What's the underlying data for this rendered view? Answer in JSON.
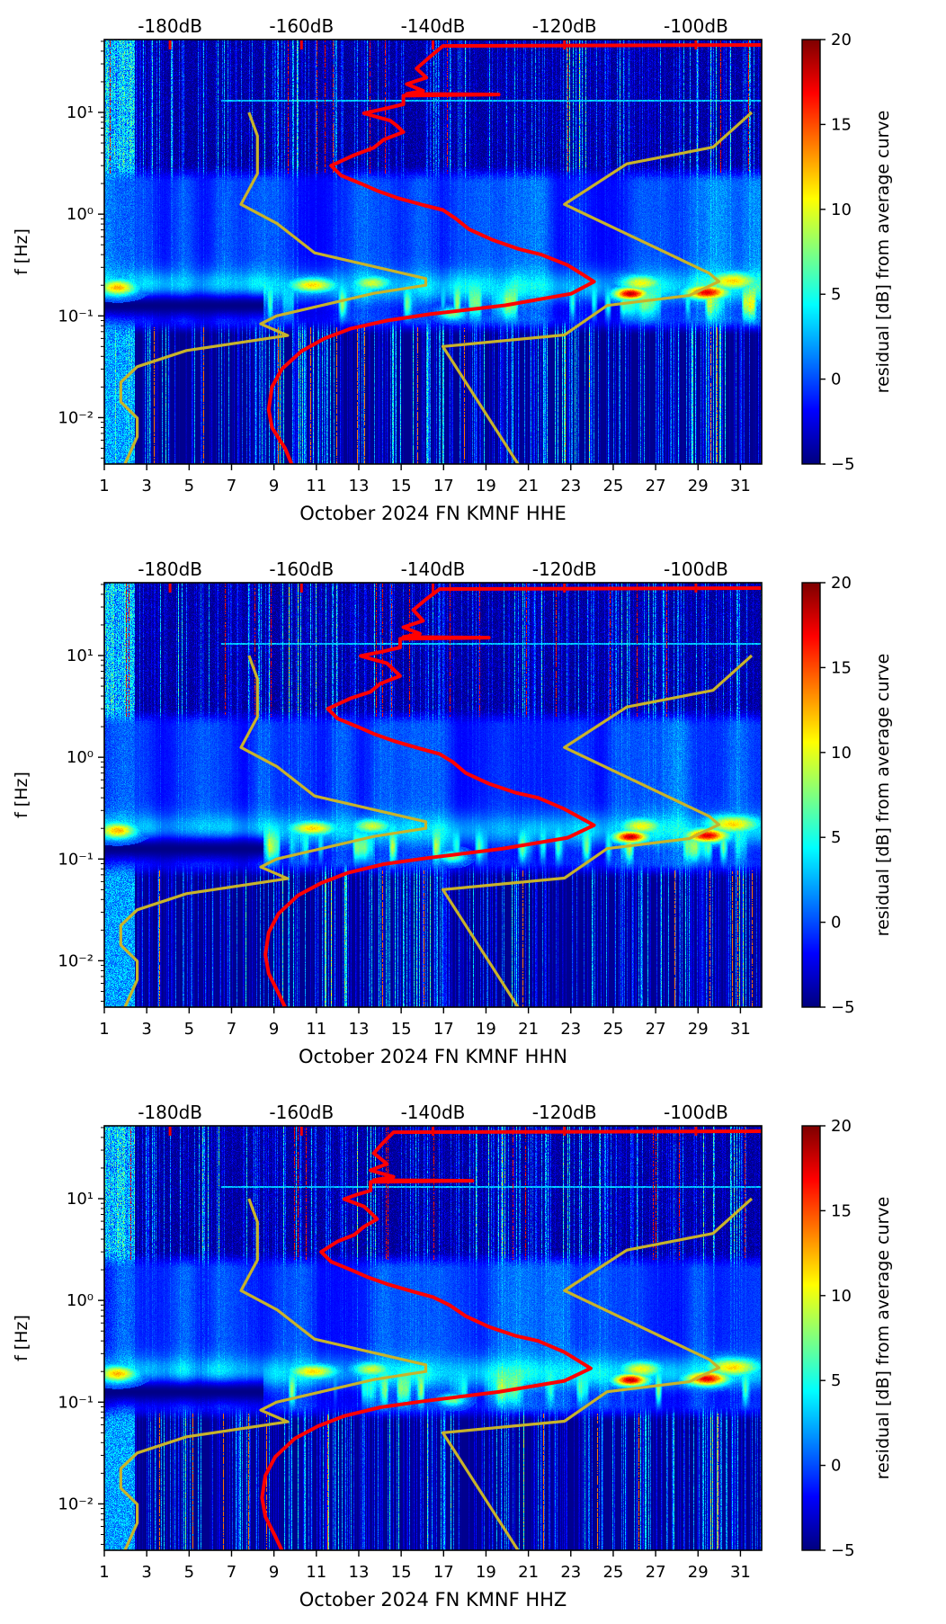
{
  "chart_data": {
    "type": "heatmap",
    "description": "Three daily spectrogram panels of seismic PSD residuals for station FN.KMNF (channels HHE, HHN, HHZ), October 2024, with average PSD curve (red, upper dB axis) and Peterson noise model curves (dark yellow).",
    "axes": {
      "x_label_days": [
        "1",
        "3",
        "5",
        "7",
        "9",
        "11",
        "13",
        "15",
        "17",
        "19",
        "21",
        "23",
        "25",
        "27",
        "29",
        "31"
      ],
      "x_day_values": [
        1,
        3,
        5,
        7,
        9,
        11,
        13,
        15,
        17,
        19,
        21,
        23,
        25,
        27,
        29,
        31
      ],
      "x_range_days": [
        1,
        32
      ],
      "y_label": "f [Hz]",
      "f_range": [
        0.0035,
        52
      ],
      "y_ticks": [
        {
          "f": 10,
          "label": "10¹"
        },
        {
          "f": 1,
          "label": "10⁰"
        },
        {
          "f": 0.1,
          "label": "10⁻¹"
        },
        {
          "f": 0.01,
          "label": "10⁻²"
        }
      ],
      "top_db_range": [
        -190,
        -90
      ],
      "top_ticks": [
        {
          "db": -180,
          "label": "-180dB"
        },
        {
          "db": -160,
          "label": "-160dB"
        },
        {
          "db": -140,
          "label": "-140dB"
        },
        {
          "db": -120,
          "label": "-120dB"
        },
        {
          "db": -100,
          "label": "-100dB"
        }
      ],
      "top_axis_color": "#ee0000"
    },
    "colorbar": {
      "label": "residual [dB] from average curve",
      "range": [
        -5,
        20
      ],
      "colormap": "jet",
      "ticks": [
        {
          "v": 20,
          "label": "20"
        },
        {
          "v": 15,
          "label": "15"
        },
        {
          "v": 10,
          "label": "10"
        },
        {
          "v": 5,
          "label": "5"
        },
        {
          "v": 0,
          "label": "0"
        },
        {
          "v": -5,
          "label": "−5"
        }
      ]
    },
    "noise_models": {
      "color": "#c8b32a",
      "nlnm_period_db": [
        [
          0.1,
          -168.0
        ],
        [
          0.17,
          -166.7
        ],
        [
          0.4,
          -166.7
        ],
        [
          0.8,
          -169.2
        ],
        [
          1.24,
          -163.7
        ],
        [
          2.4,
          -158.0
        ],
        [
          4.3,
          -141.1
        ],
        [
          5.0,
          -141.1
        ],
        [
          6.0,
          -149.0
        ],
        [
          10.0,
          -163.8
        ],
        [
          12.0,
          -166.2
        ],
        [
          15.6,
          -162.1
        ],
        [
          21.9,
          -177.5
        ],
        [
          31.6,
          -185.0
        ],
        [
          45.0,
          -187.5
        ],
        [
          70.0,
          -187.5
        ],
        [
          101.0,
          -185.0
        ],
        [
          154.0,
          -185.0
        ],
        [
          300.0,
          -187.0
        ]
      ],
      "nhnm_period_db": [
        [
          0.1,
          -91.5
        ],
        [
          0.22,
          -97.4
        ],
        [
          0.32,
          -110.5
        ],
        [
          0.8,
          -120.0
        ],
        [
          3.8,
          -98.0
        ],
        [
          4.6,
          -96.5
        ],
        [
          6.3,
          -101.0
        ],
        [
          7.9,
          -113.5
        ],
        [
          15.4,
          -120.0
        ],
        [
          20.0,
          -138.5
        ],
        [
          290.0,
          -127.0
        ]
      ]
    },
    "average_curve_color": "#ff0000",
    "panels": [
      {
        "id": "HHE",
        "xlabel": "October 2024 FN KMNF  HHE",
        "seed": 11,
        "average_psd_f_db": [
          [
            46,
            -90
          ],
          [
            45,
            -138.5
          ],
          [
            35,
            -140.5
          ],
          [
            27,
            -142.5
          ],
          [
            22,
            -141
          ],
          [
            19,
            -144
          ],
          [
            16.3,
            -141.5
          ],
          [
            15.2,
            -144
          ],
          [
            15,
            -130
          ],
          [
            14.6,
            -144.5
          ],
          [
            12,
            -144.5
          ],
          [
            11,
            -147
          ],
          [
            9.8,
            -150.5
          ],
          [
            8.3,
            -146.5
          ],
          [
            7.4,
            -145.5
          ],
          [
            6.4,
            -144.5
          ],
          [
            5.4,
            -147.5
          ],
          [
            4.5,
            -149
          ],
          [
            3.8,
            -152
          ],
          [
            3.0,
            -155.5
          ],
          [
            2.4,
            -154
          ],
          [
            2.0,
            -151
          ],
          [
            1.7,
            -148.5
          ],
          [
            1.45,
            -145.5
          ],
          [
            1.23,
            -141.5
          ],
          [
            1.1,
            -138.5
          ],
          [
            0.9,
            -136.5
          ],
          [
            0.71,
            -134.5
          ],
          [
            0.56,
            -131
          ],
          [
            0.455,
            -127
          ],
          [
            0.4,
            -123.5
          ],
          [
            0.315,
            -119.5
          ],
          [
            0.217,
            -115.5
          ],
          [
            0.165,
            -119
          ],
          [
            0.127,
            -129
          ],
          [
            0.104,
            -140.5
          ],
          [
            0.09,
            -147
          ],
          [
            0.075,
            -152.5
          ],
          [
            0.06,
            -156.5
          ],
          [
            0.045,
            -160
          ],
          [
            0.03,
            -163
          ],
          [
            0.02,
            -164.5
          ],
          [
            0.012,
            -165
          ],
          [
            0.008,
            -164.5
          ],
          [
            0.005,
            -162.5
          ],
          [
            0.0035,
            -161.5
          ]
        ]
      },
      {
        "id": "HHN",
        "xlabel": "October 2024 FN KMNF  HHN",
        "seed": 23,
        "average_psd_f_db": [
          [
            46,
            -90
          ],
          [
            45,
            -139
          ],
          [
            36,
            -141
          ],
          [
            28,
            -143
          ],
          [
            22,
            -141.5
          ],
          [
            19,
            -144.5
          ],
          [
            16.4,
            -142
          ],
          [
            15.2,
            -144.5
          ],
          [
            15,
            -131.5
          ],
          [
            14.6,
            -145
          ],
          [
            12,
            -145
          ],
          [
            11,
            -147.5
          ],
          [
            9.9,
            -151
          ],
          [
            8.4,
            -147
          ],
          [
            7.3,
            -146
          ],
          [
            6.3,
            -145
          ],
          [
            5.3,
            -148
          ],
          [
            4.4,
            -149.5
          ],
          [
            3.8,
            -152.5
          ],
          [
            3.0,
            -156
          ],
          [
            2.4,
            -154.5
          ],
          [
            2.0,
            -151.5
          ],
          [
            1.7,
            -149
          ],
          [
            1.45,
            -146
          ],
          [
            1.22,
            -142
          ],
          [
            1.08,
            -139
          ],
          [
            0.9,
            -137
          ],
          [
            0.7,
            -135
          ],
          [
            0.55,
            -131.5
          ],
          [
            0.45,
            -127.5
          ],
          [
            0.4,
            -124
          ],
          [
            0.31,
            -120
          ],
          [
            0.215,
            -115.5
          ],
          [
            0.162,
            -119.5
          ],
          [
            0.126,
            -129.5
          ],
          [
            0.102,
            -141
          ],
          [
            0.089,
            -147.5
          ],
          [
            0.073,
            -153
          ],
          [
            0.058,
            -157
          ],
          [
            0.044,
            -160.5
          ],
          [
            0.029,
            -163.5
          ],
          [
            0.019,
            -165
          ],
          [
            0.0115,
            -165.5
          ],
          [
            0.0075,
            -165
          ],
          [
            0.0048,
            -163.5
          ],
          [
            0.0035,
            -162.5
          ]
        ]
      },
      {
        "id": "HHZ",
        "xlabel": "October 2024 FN KMNF  HHZ",
        "seed": 37,
        "average_psd_f_db": [
          [
            46,
            -90
          ],
          [
            45,
            -146
          ],
          [
            36,
            -147.5
          ],
          [
            28,
            -149
          ],
          [
            22,
            -147
          ],
          [
            19,
            -149.5
          ],
          [
            16.4,
            -146
          ],
          [
            15.2,
            -149
          ],
          [
            15,
            -134
          ],
          [
            14.6,
            -149.5
          ],
          [
            12,
            -149.5
          ],
          [
            11,
            -151.5
          ],
          [
            9.9,
            -153.5
          ],
          [
            8.4,
            -150.5
          ],
          [
            7.3,
            -149.5
          ],
          [
            6.3,
            -148.5
          ],
          [
            5.3,
            -150.5
          ],
          [
            4.4,
            -152
          ],
          [
            3.8,
            -154.5
          ],
          [
            3.0,
            -157
          ],
          [
            2.4,
            -155.5
          ],
          [
            2.0,
            -152.5
          ],
          [
            1.7,
            -150
          ],
          [
            1.45,
            -147
          ],
          [
            1.22,
            -143
          ],
          [
            1.08,
            -140
          ],
          [
            0.9,
            -137.5
          ],
          [
            0.7,
            -135
          ],
          [
            0.55,
            -131.5
          ],
          [
            0.45,
            -127.5
          ],
          [
            0.4,
            -124
          ],
          [
            0.31,
            -120
          ],
          [
            0.215,
            -116
          ],
          [
            0.162,
            -120
          ],
          [
            0.126,
            -130
          ],
          [
            0.102,
            -141.5
          ],
          [
            0.089,
            -148
          ],
          [
            0.073,
            -153.5
          ],
          [
            0.058,
            -157.5
          ],
          [
            0.044,
            -161
          ],
          [
            0.029,
            -164
          ],
          [
            0.019,
            -165.5
          ],
          [
            0.0115,
            -166
          ],
          [
            0.0075,
            -165.5
          ],
          [
            0.0048,
            -164
          ],
          [
            0.0035,
            -163
          ]
        ]
      }
    ],
    "heatmap_features": {
      "bands": {
        "high_streak_band_hz_min": 2.6,
        "diffuse_mid_band_hz": [
          0.28,
          2.6
        ],
        "microseism_ridge_hz": 0.19,
        "quiet_dark_band_hz": [
          0.085,
          0.18
        ],
        "quiet_dark_band_until_day": 8.5,
        "low_f_streak_band_hz_max": 0.075,
        "faint_horizontal_line_hz": 13
      },
      "hotspots": [
        {
          "day": 1.6,
          "f": 0.19,
          "amp": 13,
          "dw": 0.9,
          "fw": 0.08
        },
        {
          "day": 10.8,
          "f": 0.2,
          "amp": 12,
          "dw": 1.1,
          "fw": 0.07
        },
        {
          "day": 13.6,
          "f": 0.21,
          "amp": 10,
          "dw": 0.9,
          "fw": 0.07
        },
        {
          "day": 17.4,
          "f": 0.105,
          "amp": 8,
          "dw": 0.6,
          "fw": 0.06
        },
        {
          "day": 25.8,
          "f": 0.165,
          "amp": 19,
          "dw": 0.8,
          "fw": 0.06
        },
        {
          "day": 26.3,
          "f": 0.21,
          "amp": 11,
          "dw": 1.0,
          "fw": 0.08
        },
        {
          "day": 29.4,
          "f": 0.17,
          "amp": 18,
          "dw": 1.0,
          "fw": 0.07
        },
        {
          "day": 30.6,
          "f": 0.22,
          "amp": 12,
          "dw": 1.3,
          "fw": 0.09
        }
      ]
    }
  }
}
